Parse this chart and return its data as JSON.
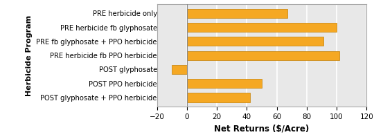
{
  "categories": [
    "PRE herbicide only",
    "PRE herbicide fb glyphosate",
    "PRE fb glyphosate + PPO herbicide",
    "PRE herbicide fb PPO herbicide",
    "POST glyphosate",
    "POST PPO herbicide",
    "POST glyphosate + PPO herbicide"
  ],
  "values": [
    67,
    100,
    91,
    102,
    -10,
    50,
    42
  ],
  "bar_color": "#F5A823",
  "bar_edge_color": "#C47F00",
  "xlabel": "Net Returns ($/Acre)",
  "ylabel": "Herbicide Program",
  "xlim": [
    -20,
    120
  ],
  "xticks": [
    -20,
    0,
    20,
    40,
    60,
    80,
    100,
    120
  ],
  "background_color": "#E8E8E8",
  "grid_color": "#FFFFFF",
  "bar_height": 0.65,
  "figsize": [
    5.4,
    1.98
  ],
  "dpi": 100,
  "xlabel_fontsize": 8.5,
  "ylabel_fontsize": 8,
  "tick_fontsize": 7.5,
  "label_fontsize": 7.2
}
